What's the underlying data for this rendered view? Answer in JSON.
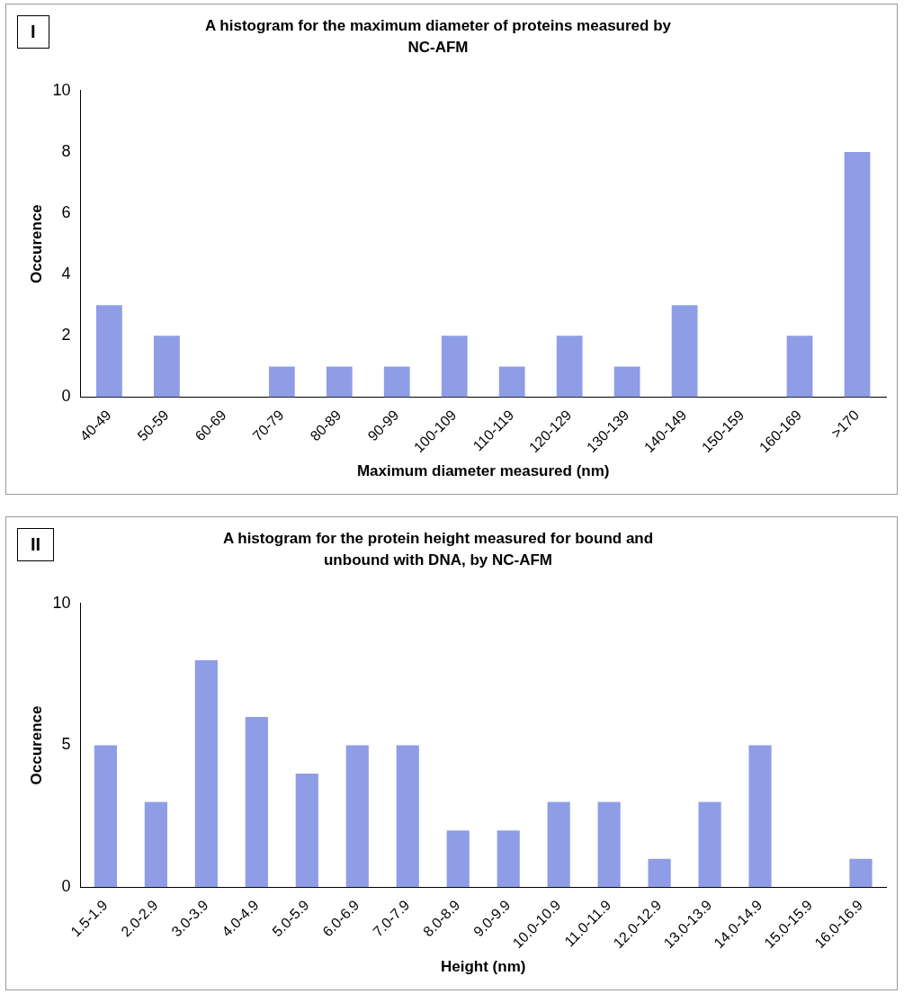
{
  "chart_data": [
    {
      "type": "bar",
      "title": "A histogram for the maximum diameter of proteins measured by NC-AFM",
      "xlabel": "Maximum diameter measured (nm)",
      "ylabel": "Occurence",
      "annotations": [
        "I"
      ],
      "categories": [
        "40-49",
        "50-59",
        "60-69",
        "70-79",
        "80-89",
        "90-99",
        "100-109",
        "110-119",
        "120-129",
        "130-139",
        "140-149",
        "150-159",
        "160-169",
        ">170"
      ],
      "values": [
        3,
        2,
        0,
        1,
        1,
        1,
        2,
        1,
        2,
        1,
        3,
        0,
        2,
        8
      ],
      "color": "#8e9de6",
      "ylim": [
        0,
        10
      ],
      "yticks": [
        0,
        2,
        4,
        6,
        8,
        10
      ],
      "grid": false,
      "legend": false
    },
    {
      "type": "bar",
      "title": "A histogram for the protein height  measured for bound and unbound with DNA, by NC-AFM",
      "xlabel": "Height (nm)",
      "ylabel": "Occurence",
      "annotations": [
        "II"
      ],
      "categories": [
        "1.5-1.9",
        "2.0-2.9",
        "3.0-3.9",
        "4.0-4.9",
        "5.0-5.9",
        "6.0-6.9",
        "7.0-7.9",
        "8.0-8.9",
        "9.0-9.9",
        "10.0-10.9",
        "11.0-11.9",
        "12.0-12.9",
        "13.0-13.9",
        "14.0-14.9",
        "15.0-15.9",
        "16.0-16.9"
      ],
      "values": [
        5,
        3,
        8,
        6,
        4,
        5,
        5,
        2,
        2,
        3,
        3,
        1,
        3,
        5,
        0,
        1
      ],
      "color": "#8e9de6",
      "ylim": [
        0,
        10
      ],
      "yticks": [
        0,
        5,
        10
      ],
      "grid": false,
      "legend": false
    }
  ]
}
